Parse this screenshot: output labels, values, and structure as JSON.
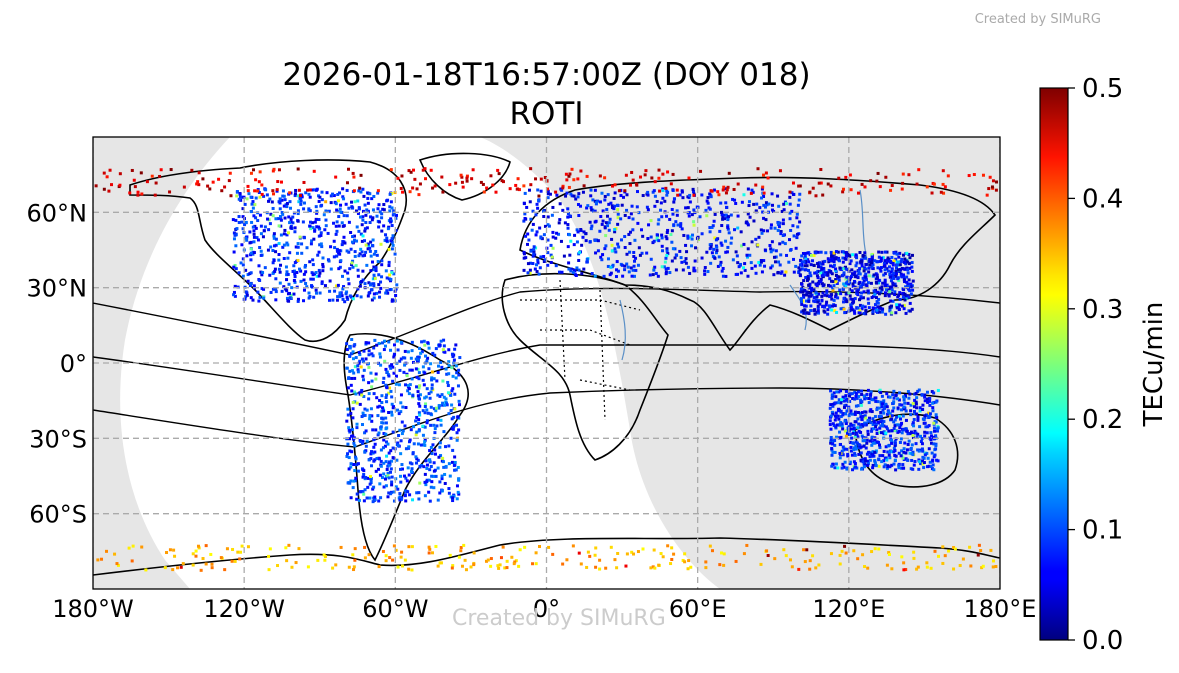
{
  "header": {
    "title_line1": "2026-01-18T16:57:00Z (DOY 018)",
    "title_line2": "ROTI",
    "credit": "Created by SIMuRG",
    "watermark": "Created by SIMuRG"
  },
  "map": {
    "projection": "equirectangular",
    "lon_range": [
      -180,
      180
    ],
    "lat_range": [
      -90,
      90
    ],
    "lon_ticks": [
      -180,
      -120,
      -60,
      0,
      60,
      120,
      180
    ],
    "lat_ticks": [
      60,
      30,
      0,
      -30,
      -60
    ],
    "lon_tick_labels": [
      "180°W",
      "120°W",
      "60°W",
      "0°",
      "60°E",
      "120°E",
      "180°E"
    ],
    "lat_tick_labels": [
      "60°N",
      "30°N",
      "0°",
      "30°S",
      "60°S"
    ],
    "grid": true,
    "night_shading": true,
    "data_density_regions": [
      {
        "name": "north-america",
        "lon": [
          -125,
          -60
        ],
        "lat": [
          25,
          70
        ],
        "level": 0.08
      },
      {
        "name": "europe-asia",
        "lon": [
          -10,
          100
        ],
        "lat": [
          35,
          70
        ],
        "level": 0.07
      },
      {
        "name": "south-america",
        "lon": [
          -80,
          -35
        ],
        "lat": [
          -55,
          10
        ],
        "level": 0.09
      },
      {
        "name": "australia",
        "lon": [
          112,
          155
        ],
        "lat": [
          -42,
          -10
        ],
        "level": 0.08
      },
      {
        "name": "east-asia",
        "lon": [
          100,
          145
        ],
        "lat": [
          20,
          45
        ],
        "level": 0.06
      },
      {
        "name": "high-latitude-north",
        "lon": [
          -180,
          180
        ],
        "lat": [
          67,
          78
        ],
        "level": 0.45
      },
      {
        "name": "antarctic-coast",
        "lon": [
          -180,
          180
        ],
        "lat": [
          -82,
          -72
        ],
        "level": 0.35
      }
    ]
  },
  "colorbar": {
    "colormap": "jet",
    "min": 0.0,
    "max": 0.5,
    "ticks": [
      0.0,
      0.1,
      0.2,
      0.3,
      0.4,
      0.5
    ],
    "tick_labels": [
      "0.0",
      "0.1",
      "0.2",
      "0.3",
      "0.4",
      "0.5"
    ],
    "label": "TECu/min"
  }
}
